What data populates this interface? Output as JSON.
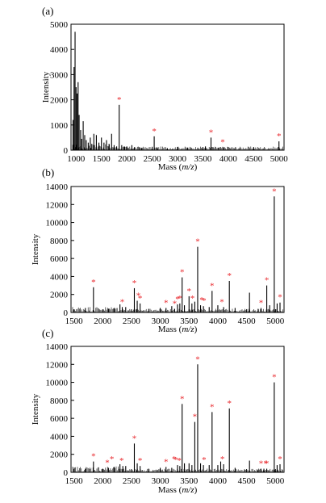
{
  "chart_data": [
    {
      "type": "bar",
      "panel_label": "(a)",
      "xlabel_main": "Mass (",
      "xlabel_italic": "m/z",
      "xlabel_close": ")",
      "ylabel": "Intensity",
      "xlim": [
        900,
        5100
      ],
      "ylim": [
        0,
        5000
      ],
      "xticks": [
        1000,
        1500,
        2000,
        2500,
        3000,
        3500,
        4000,
        4500,
        5000
      ],
      "yticks": [
        0,
        1000,
        2000,
        3000,
        4000,
        5000
      ],
      "peaks": [
        [
          940,
          1200
        ],
        [
          960,
          3300
        ],
        [
          980,
          4700
        ],
        [
          1000,
          2500
        ],
        [
          1020,
          2250
        ],
        [
          1040,
          2700
        ],
        [
          1060,
          1400
        ],
        [
          1090,
          800
        ],
        [
          1110,
          450
        ],
        [
          1140,
          1150
        ],
        [
          1170,
          600
        ],
        [
          1200,
          400
        ],
        [
          1240,
          300
        ],
        [
          1280,
          500
        ],
        [
          1310,
          250
        ],
        [
          1350,
          650
        ],
        [
          1400,
          600
        ],
        [
          1450,
          300
        ],
        [
          1500,
          500
        ],
        [
          1550,
          300
        ],
        [
          1600,
          400
        ],
        [
          1650,
          250
        ],
        [
          1700,
          650
        ],
        [
          1750,
          200
        ],
        [
          1800,
          150
        ],
        [
          1850,
          1800
        ],
        [
          1900,
          200
        ],
        [
          1950,
          150
        ],
        [
          2000,
          150
        ],
        [
          2100,
          200
        ],
        [
          2150,
          120
        ],
        [
          2250,
          120
        ],
        [
          2300,
          100
        ],
        [
          2540,
          550
        ],
        [
          2600,
          100
        ],
        [
          2800,
          80
        ],
        [
          3000,
          80
        ],
        [
          3200,
          100
        ],
        [
          3400,
          100
        ],
        [
          3550,
          150
        ],
        [
          3660,
          500
        ],
        [
          3700,
          120
        ],
        [
          3800,
          100
        ],
        [
          3900,
          120
        ],
        [
          4500,
          80
        ],
        [
          5000,
          350
        ]
      ],
      "starred_x": [
        1850,
        2540,
        3660,
        3890,
        5000
      ],
      "star_symbol": "*"
    },
    {
      "type": "bar",
      "panel_label": "(b)",
      "xlabel_main": "Mass (",
      "xlabel_italic": "m/z",
      "xlabel_close": ")",
      "ylabel": "Intensity",
      "xlim": [
        1450,
        5150
      ],
      "ylim": [
        0,
        14000
      ],
      "xticks": [
        1500,
        2000,
        2500,
        3000,
        3500,
        4000,
        4500,
        5000
      ],
      "yticks": [
        0,
        2000,
        4000,
        6000,
        8000,
        10000,
        12000,
        14000
      ],
      "peaks": [
        [
          1700,
          500
        ],
        [
          1840,
          2800
        ],
        [
          2100,
          400
        ],
        [
          2200,
          500
        ],
        [
          2300,
          900
        ],
        [
          2340,
          600
        ],
        [
          2400,
          600
        ],
        [
          2550,
          2700
        ],
        [
          2600,
          1300
        ],
        [
          2650,
          1000
        ],
        [
          2800,
          400
        ],
        [
          3000,
          500
        ],
        [
          3100,
          500
        ],
        [
          3200,
          700
        ],
        [
          3250,
          400
        ],
        [
          3300,
          900
        ],
        [
          3340,
          1000
        ],
        [
          3380,
          3900
        ],
        [
          3420,
          800
        ],
        [
          3500,
          1800
        ],
        [
          3550,
          1000
        ],
        [
          3600,
          1200
        ],
        [
          3650,
          7300
        ],
        [
          3700,
          800
        ],
        [
          3750,
          700
        ],
        [
          3850,
          600
        ],
        [
          3900,
          2400
        ],
        [
          4000,
          800
        ],
        [
          4100,
          600
        ],
        [
          4200,
          3500
        ],
        [
          4300,
          500
        ],
        [
          4550,
          2200
        ],
        [
          4700,
          400
        ],
        [
          4750,
          500
        ],
        [
          4850,
          3000
        ],
        [
          4900,
          800
        ],
        [
          4980,
          12900
        ],
        [
          5030,
          1000
        ],
        [
          5080,
          1100
        ]
      ],
      "starred_x": [
        1840,
        2340,
        2550,
        2620,
        2650,
        3100,
        3250,
        3300,
        3340,
        3380,
        3500,
        3560,
        3650,
        3720,
        3760,
        3900,
        4070,
        4200,
        4750,
        4850,
        4980,
        5080
      ],
      "star_symbol": "*"
    },
    {
      "type": "bar",
      "panel_label": "(c)",
      "xlabel_main": "Mass (",
      "xlabel_italic": "m/z",
      "xlabel_close": ")",
      "ylabel": "Intensity",
      "xlim": [
        1450,
        5150
      ],
      "ylim": [
        0,
        14000
      ],
      "xticks": [
        1500,
        2000,
        2500,
        3000,
        3500,
        4000,
        4500,
        5000
      ],
      "yticks": [
        0,
        2000,
        4000,
        6000,
        8000,
        10000,
        12000,
        14000
      ],
      "peaks": [
        [
          1700,
          400
        ],
        [
          1840,
          1200
        ],
        [
          2000,
          400
        ],
        [
          2100,
          500
        ],
        [
          2200,
          600
        ],
        [
          2300,
          900
        ],
        [
          2350,
          700
        ],
        [
          2400,
          700
        ],
        [
          2550,
          3200
        ],
        [
          2600,
          1000
        ],
        [
          2650,
          700
        ],
        [
          2800,
          400
        ],
        [
          3000,
          500
        ],
        [
          3100,
          600
        ],
        [
          3200,
          500
        ],
        [
          3300,
          800
        ],
        [
          3340,
          700
        ],
        [
          3380,
          7600
        ],
        [
          3420,
          1000
        ],
        [
          3500,
          1000
        ],
        [
          3550,
          800
        ],
        [
          3600,
          5600
        ],
        [
          3650,
          12000
        ],
        [
          3700,
          1000
        ],
        [
          3750,
          800
        ],
        [
          3850,
          800
        ],
        [
          3900,
          6700
        ],
        [
          4000,
          800
        ],
        [
          4050,
          1200
        ],
        [
          4100,
          900
        ],
        [
          4200,
          7100
        ],
        [
          4300,
          500
        ],
        [
          4550,
          1300
        ],
        [
          4700,
          300
        ],
        [
          4750,
          400
        ],
        [
          4800,
          400
        ],
        [
          4850,
          400
        ],
        [
          4980,
          10000
        ],
        [
          5030,
          800
        ],
        [
          5080,
          900
        ]
      ],
      "starred_x": [
        1840,
        2080,
        2160,
        2330,
        2550,
        2650,
        3100,
        3240,
        3270,
        3330,
        3380,
        3600,
        3650,
        3760,
        3900,
        4080,
        4200,
        4750,
        4830,
        4850,
        4980,
        5080
      ],
      "star_symbol": "*"
    }
  ]
}
